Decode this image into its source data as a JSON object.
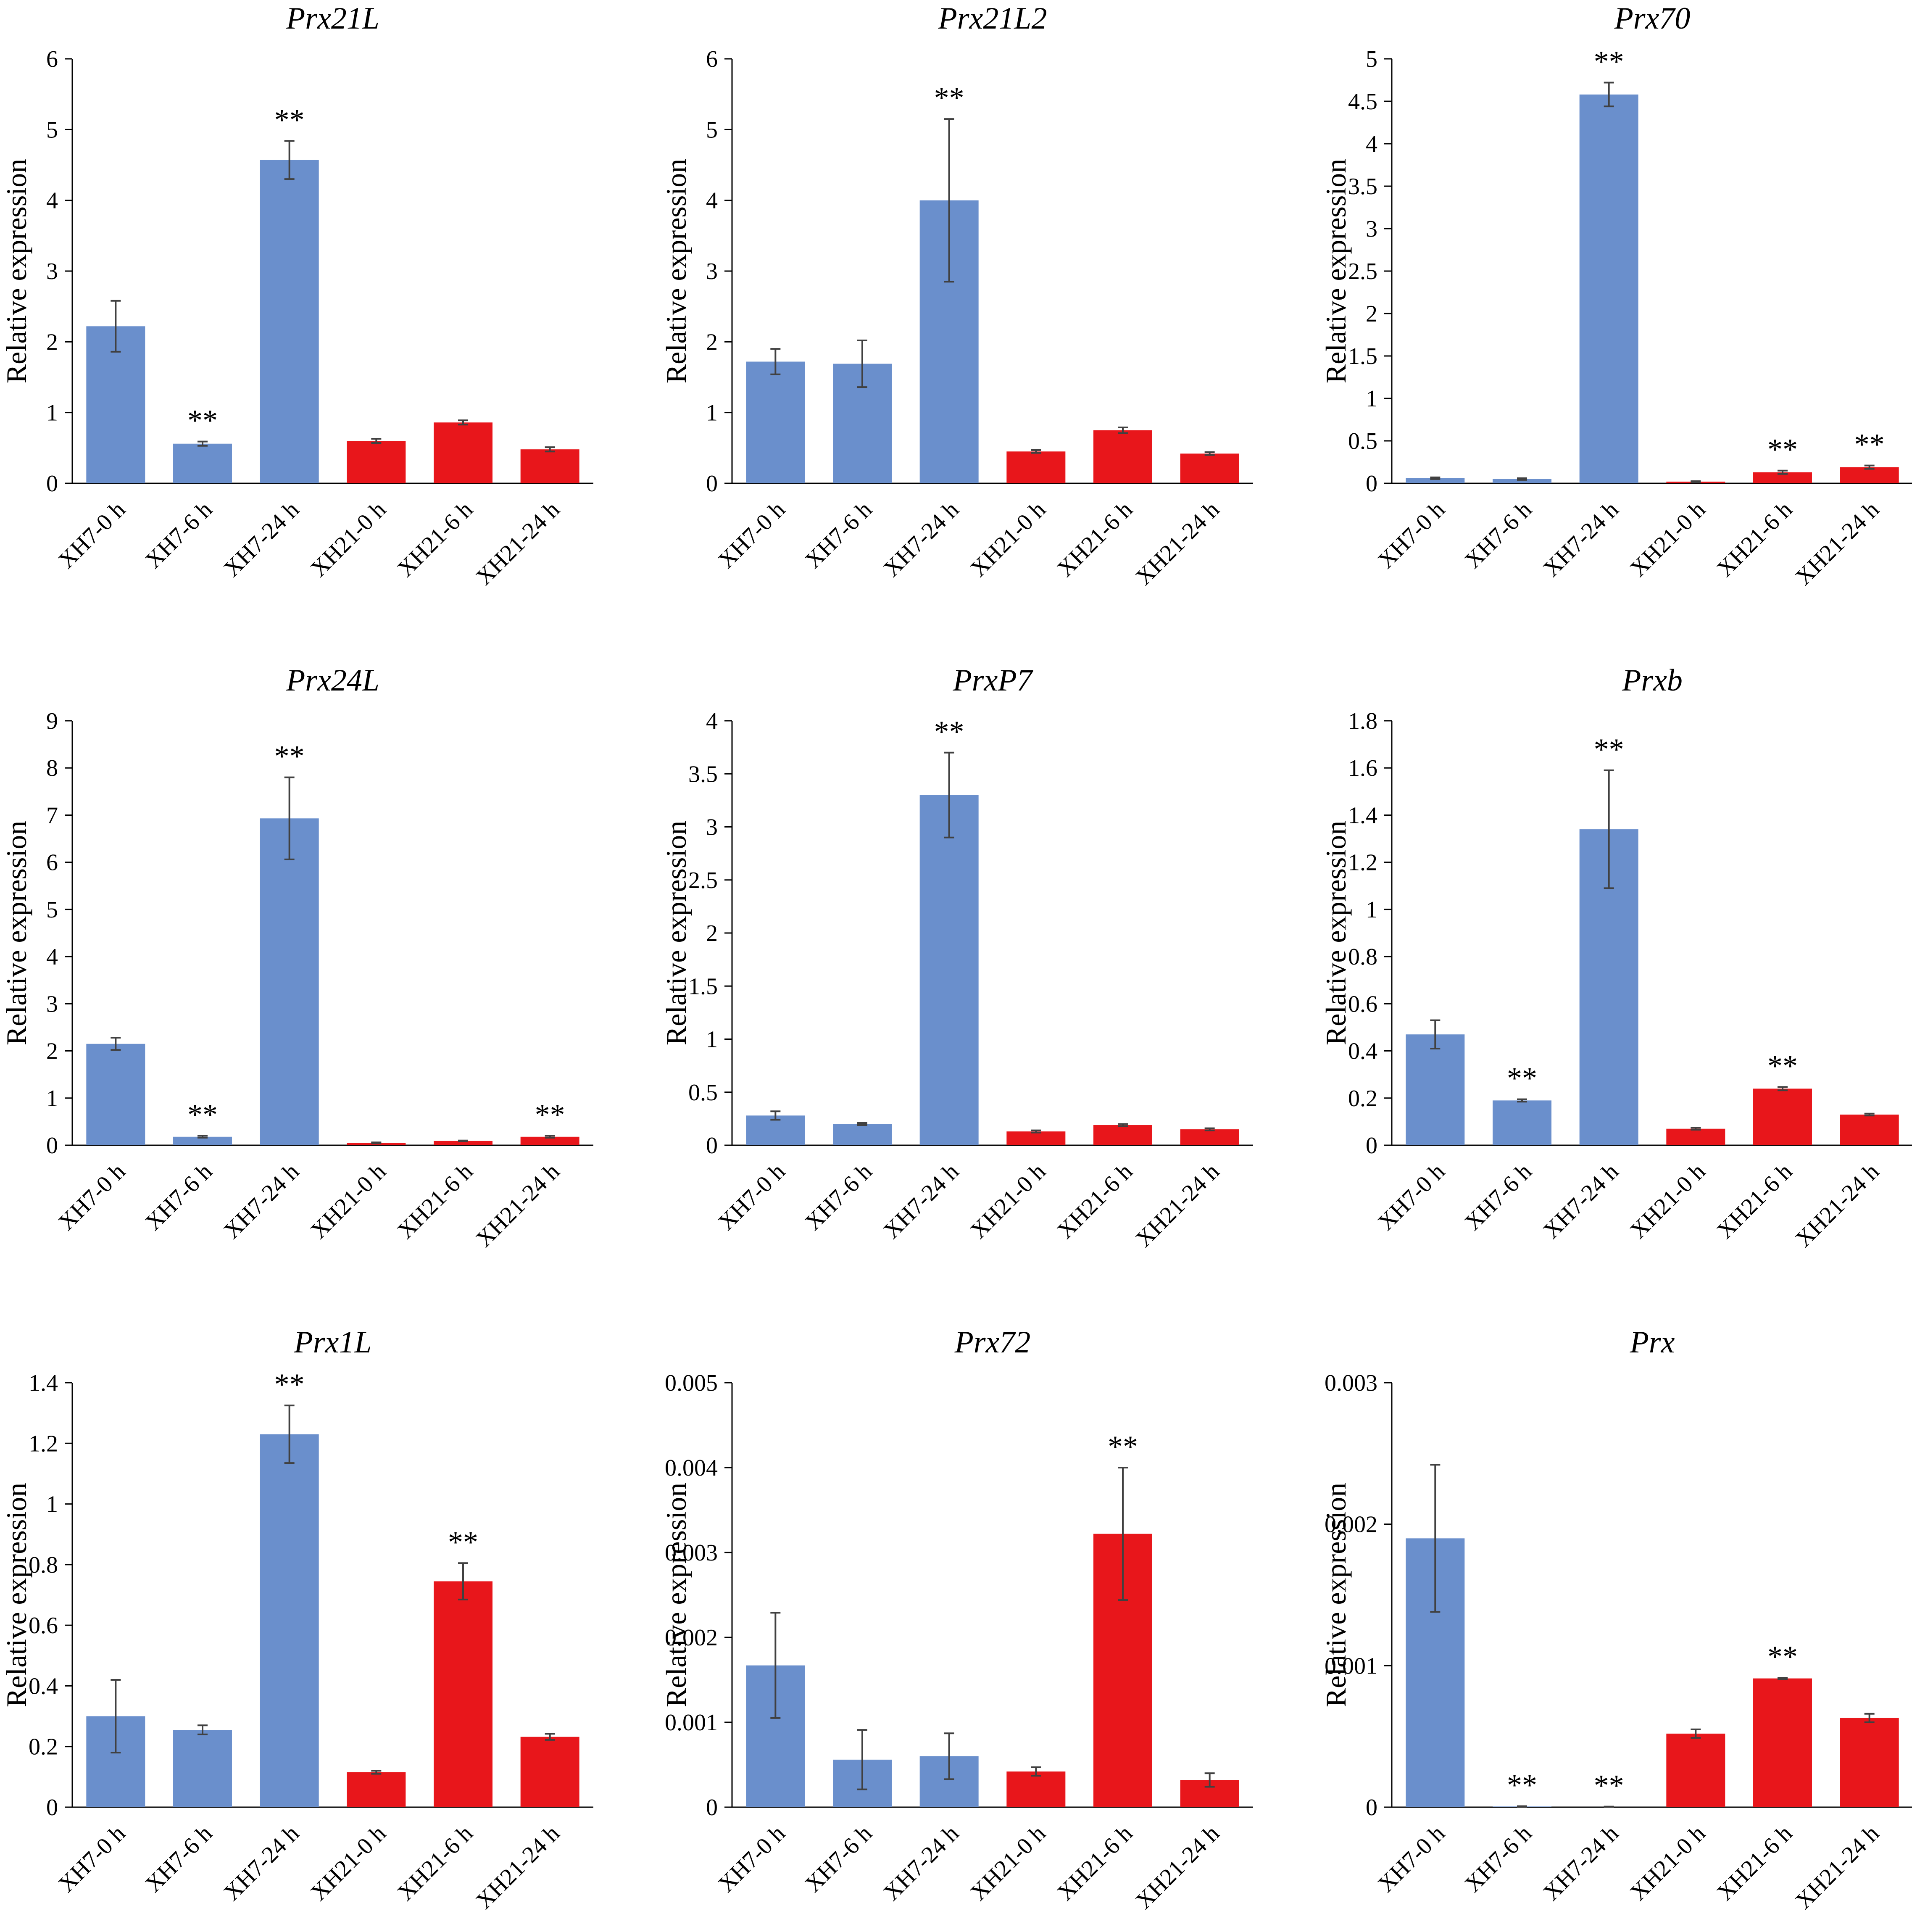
{
  "colors": {
    "XH7": "#6a8fcc",
    "XH21": "#e8161b",
    "axis": "#000000",
    "error_bar": "#404040"
  },
  "chart_data": [
    {
      "type": "bar",
      "title": "Prx21L",
      "ylabel": "Relative expression",
      "categories": [
        "XH7-0 h",
        "XH7-6 h",
        "XH7-24 h",
        "XH21-0 h",
        "XH21-6 h",
        "XH21-24 h"
      ],
      "groups": [
        "XH7",
        "XH7",
        "XH7",
        "XH21",
        "XH21",
        "XH21"
      ],
      "values": [
        2.22,
        0.56,
        4.57,
        0.6,
        0.86,
        0.48
      ],
      "errors": [
        0.36,
        0.03,
        0.27,
        0.03,
        0.03,
        0.03
      ],
      "significance": [
        "",
        "**",
        "**",
        "",
        "",
        ""
      ],
      "ylim": [
        0,
        6
      ],
      "yticks": [
        0,
        1,
        2,
        3,
        4,
        5,
        6
      ],
      "ytick_labels": [
        "0",
        "1",
        "2",
        "3",
        "4",
        "5",
        "6"
      ]
    },
    {
      "type": "bar",
      "title": "Prx21L2",
      "ylabel": "Relative expression",
      "categories": [
        "XH7-0 h",
        "XH7-6 h",
        "XH7-24 h",
        "XH21-0 h",
        "XH21-6 h",
        "XH21-24 h"
      ],
      "groups": [
        "XH7",
        "XH7",
        "XH7",
        "XH21",
        "XH21",
        "XH21"
      ],
      "values": [
        1.72,
        1.69,
        4.0,
        0.45,
        0.75,
        0.42
      ],
      "errors": [
        0.18,
        0.33,
        1.15,
        0.02,
        0.04,
        0.02
      ],
      "significance": [
        "",
        "",
        "**",
        "",
        "",
        ""
      ],
      "ylim": [
        0,
        6
      ],
      "yticks": [
        0,
        1,
        2,
        3,
        4,
        5,
        6
      ],
      "ytick_labels": [
        "0",
        "1",
        "2",
        "3",
        "4",
        "5",
        "6"
      ]
    },
    {
      "type": "bar",
      "title": "Prx70",
      "ylabel": "Relative expression",
      "categories": [
        "XH7-0 h",
        "XH7-6 h",
        "XH7-24 h",
        "XH21-0 h",
        "XH21-6 h",
        "XH21-24 h"
      ],
      "groups": [
        "XH7",
        "XH7",
        "XH7",
        "XH21",
        "XH21",
        "XH21"
      ],
      "values": [
        0.06,
        0.05,
        4.58,
        0.02,
        0.13,
        0.19
      ],
      "errors": [
        0.01,
        0.01,
        0.14,
        0.005,
        0.02,
        0.02
      ],
      "significance": [
        "",
        "",
        "**",
        "",
        "**",
        "**"
      ],
      "ylim": [
        0,
        5
      ],
      "yticks": [
        0,
        0.5,
        1,
        1.5,
        2,
        2.5,
        3,
        3.5,
        4,
        4.5,
        5
      ],
      "ytick_labels": [
        "0",
        "0.5",
        "1",
        "1.5",
        "2",
        "2.5",
        "3",
        "3.5",
        "4",
        "4.5",
        "5"
      ]
    },
    {
      "type": "bar",
      "title": "Prx24L",
      "ylabel": "Relative expression",
      "categories": [
        "XH7-0 h",
        "XH7-6 h",
        "XH7-24 h",
        "XH21-0 h",
        "XH21-6 h",
        "XH21-24 h"
      ],
      "groups": [
        "XH7",
        "XH7",
        "XH7",
        "XH21",
        "XH21",
        "XH21"
      ],
      "values": [
        2.15,
        0.18,
        6.93,
        0.05,
        0.09,
        0.18
      ],
      "errors": [
        0.13,
        0.02,
        0.87,
        0.01,
        0.01,
        0.02
      ],
      "significance": [
        "",
        "**",
        "**",
        "",
        "",
        "**"
      ],
      "ylim": [
        0,
        9
      ],
      "yticks": [
        0,
        1,
        2,
        3,
        4,
        5,
        6,
        7,
        8,
        9
      ],
      "ytick_labels": [
        "0",
        "1",
        "2",
        "3",
        "4",
        "5",
        "6",
        "7",
        "8",
        "9"
      ]
    },
    {
      "type": "bar",
      "title": "PrxP7",
      "ylabel": "Relative expression",
      "categories": [
        "XH7-0 h",
        "XH7-6 h",
        "XH7-24 h",
        "XH21-0 h",
        "XH21-6 h",
        "XH21-24 h"
      ],
      "groups": [
        "XH7",
        "XH7",
        "XH7",
        "XH21",
        "XH21",
        "XH21"
      ],
      "values": [
        0.28,
        0.2,
        3.3,
        0.13,
        0.19,
        0.15
      ],
      "errors": [
        0.04,
        0.01,
        0.4,
        0.01,
        0.01,
        0.01
      ],
      "significance": [
        "",
        "",
        "**",
        "",
        "",
        ""
      ],
      "ylim": [
        0,
        4
      ],
      "yticks": [
        0,
        0.5,
        1,
        1.5,
        2,
        2.5,
        3,
        3.5,
        4
      ],
      "ytick_labels": [
        "0",
        "0.5",
        "1",
        "1.5",
        "2",
        "2.5",
        "3",
        "3.5",
        "4"
      ]
    },
    {
      "type": "bar",
      "title": "Prxb",
      "ylabel": "Relative expression",
      "categories": [
        "XH7-0 h",
        "XH7-6 h",
        "XH7-24 h",
        "XH21-0 h",
        "XH21-6 h",
        "XH21-24 h"
      ],
      "groups": [
        "XH7",
        "XH7",
        "XH7",
        "XH21",
        "XH21",
        "XH21"
      ],
      "values": [
        0.47,
        0.19,
        1.34,
        0.07,
        0.24,
        0.13
      ],
      "errors": [
        0.06,
        0.005,
        0.25,
        0.004,
        0.007,
        0.004
      ],
      "significance": [
        "",
        "**",
        "**",
        "",
        "**",
        ""
      ],
      "ylim": [
        0,
        1.8
      ],
      "yticks": [
        0,
        0.2,
        0.4,
        0.6,
        0.8,
        1,
        1.2,
        1.4,
        1.6,
        1.8
      ],
      "ytick_labels": [
        "0",
        "0.2",
        "0.4",
        "0.6",
        "0.8",
        "1",
        "1.2",
        "1.4",
        "1.6",
        "1.8"
      ]
    },
    {
      "type": "bar",
      "title": "Prx1L",
      "ylabel": "Relative expression",
      "categories": [
        "XH7-0 h",
        "XH7-6 h",
        "XH7-24 h",
        "XH21-0 h",
        "XH21-6 h",
        "XH21-24 h"
      ],
      "groups": [
        "XH7",
        "XH7",
        "XH7",
        "XH21",
        "XH21",
        "XH21"
      ],
      "values": [
        0.3,
        0.255,
        1.23,
        0.115,
        0.745,
        0.232
      ],
      "errors": [
        0.12,
        0.015,
        0.095,
        0.005,
        0.06,
        0.01
      ],
      "significance": [
        "",
        "",
        "**",
        "",
        "**",
        ""
      ],
      "ylim": [
        0,
        1.4
      ],
      "yticks": [
        0,
        0.2,
        0.4,
        0.6,
        0.8,
        1,
        1.2,
        1.4
      ],
      "ytick_labels": [
        "0",
        "0.2",
        "0.4",
        "0.6",
        "0.8",
        "1",
        "1.2",
        "1.4"
      ]
    },
    {
      "type": "bar",
      "title": "Prx72",
      "ylabel": "Relative expression",
      "categories": [
        "XH7-0 h",
        "XH7-6 h",
        "XH7-24 h",
        "XH21-0 h",
        "XH21-6 h",
        "XH21-24 h"
      ],
      "groups": [
        "XH7",
        "XH7",
        "XH7",
        "XH21",
        "XH21",
        "XH21"
      ],
      "values": [
        0.00167,
        0.00056,
        0.0006,
        0.00042,
        0.00322,
        0.00032
      ],
      "errors": [
        0.00062,
        0.00035,
        0.00027,
        5e-05,
        0.00078,
        8e-05
      ],
      "significance": [
        "",
        "",
        "",
        "",
        "**",
        ""
      ],
      "ylim": [
        0,
        0.005
      ],
      "yticks": [
        0,
        0.001,
        0.002,
        0.003,
        0.004,
        0.005
      ],
      "ytick_labels": [
        "0",
        "0.001",
        "0.002",
        "0.003",
        "0.004",
        "0.005"
      ]
    },
    {
      "type": "bar",
      "title": "Prx",
      "ylabel": "Relative expression",
      "categories": [
        "XH7-0 h",
        "XH7-6 h",
        "XH7-24 h",
        "XH21-0 h",
        "XH21-6 h",
        "XH21-24 h"
      ],
      "groups": [
        "XH7",
        "XH7",
        "XH7",
        "XH21",
        "XH21",
        "XH21"
      ],
      "values": [
        0.0019,
        5e-06,
        3e-06,
        0.00052,
        0.00091,
        0.00063
      ],
      "errors": [
        0.00052,
        2e-06,
        1e-06,
        3e-05,
        5e-06,
        3e-05
      ],
      "significance": [
        "",
        "**",
        "**",
        "",
        "**",
        ""
      ],
      "ylim": [
        0,
        0.003
      ],
      "yticks": [
        0,
        0.001,
        0.002,
        0.003
      ],
      "ytick_labels": [
        "0",
        "0.001",
        "0.002",
        "0.003"
      ]
    }
  ]
}
